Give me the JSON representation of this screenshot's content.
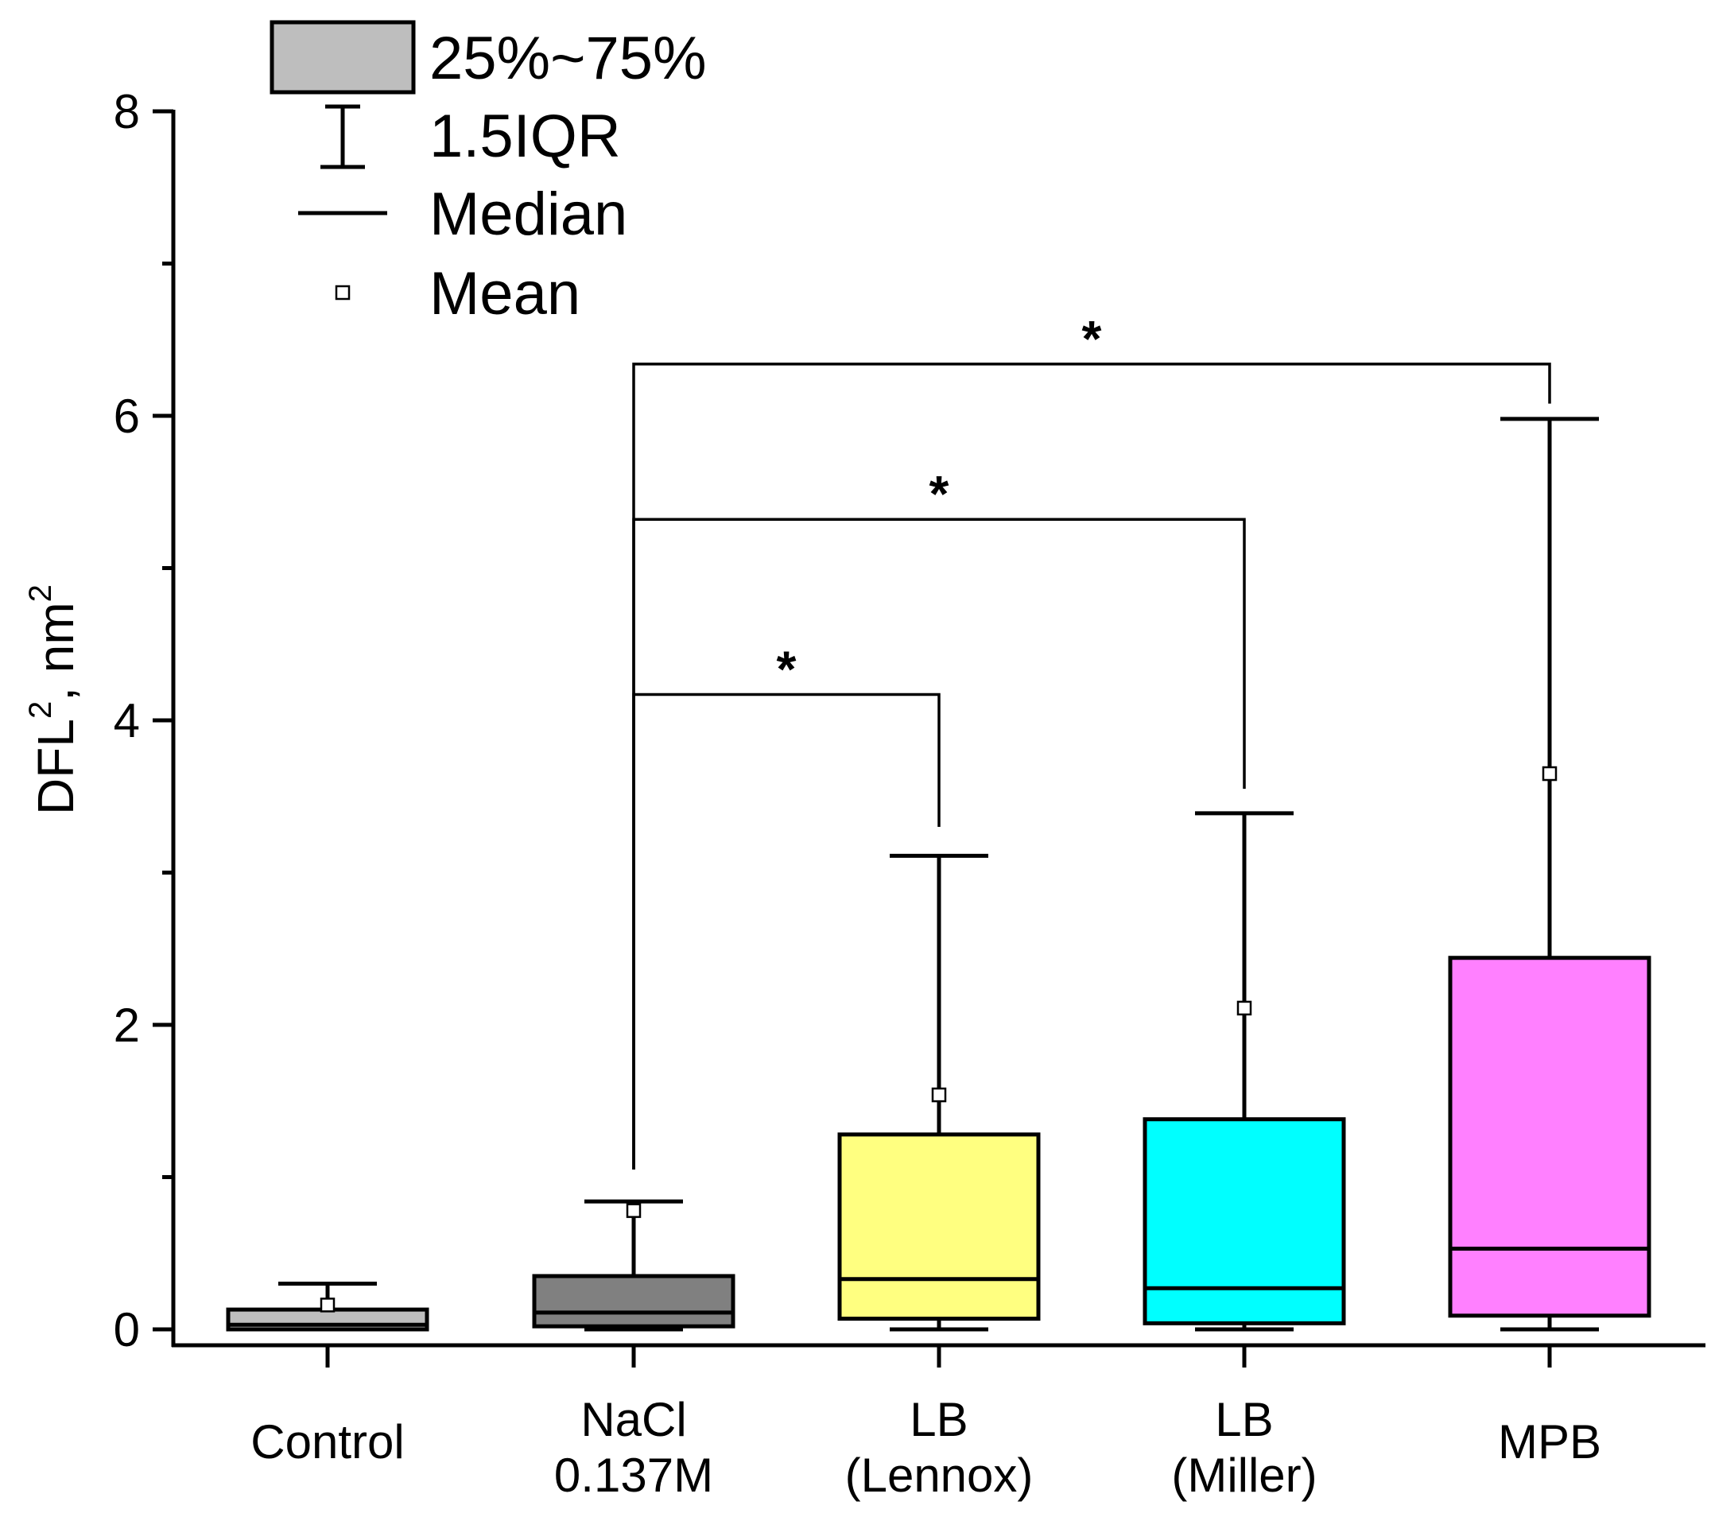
{
  "chart_data": {
    "type": "box",
    "ylabel": "DFL",
    "ylabel_sup": "2",
    "ylabel_unit": ", nm",
    "ylabel_unit_sup": "2",
    "ylim": [
      -0.2,
      8.2
    ],
    "yticks": [
      0,
      2,
      4,
      6,
      8
    ],
    "yticks_labels": [
      "0",
      "2",
      "4",
      "6",
      "8"
    ],
    "categories": [
      {
        "lines": [
          "Control"
        ]
      },
      {
        "lines": [
          "NaCl",
          "0.137M"
        ]
      },
      {
        "lines": [
          "LB",
          "(Lennox)"
        ]
      },
      {
        "lines": [
          "LB",
          "(Miller)"
        ]
      },
      {
        "lines": [
          "MPB"
        ]
      }
    ],
    "boxes": [
      {
        "name": "Control",
        "q1": 0.0,
        "median": 0.03,
        "q3": 0.13,
        "whisker_low": 0.0,
        "whisker_high": 0.3,
        "mean": 0.16,
        "color": "#bebebe"
      },
      {
        "name": "NaCl 0.137M",
        "q1": 0.02,
        "median": 0.11,
        "q3": 0.35,
        "whisker_low": 0.0,
        "whisker_high": 0.84,
        "mean": 0.78,
        "color": "#808080"
      },
      {
        "name": "LB (Lennox)",
        "q1": 0.07,
        "median": 0.33,
        "q3": 1.28,
        "whisker_low": 0.0,
        "whisker_high": 3.11,
        "mean": 1.54,
        "color": "#ffff80"
      },
      {
        "name": "LB (Miller)",
        "q1": 0.04,
        "median": 0.27,
        "q3": 1.38,
        "whisker_low": 0.0,
        "whisker_high": 3.39,
        "mean": 2.11,
        "color": "#00ffff"
      },
      {
        "name": "MPB",
        "q1": 0.09,
        "median": 0.53,
        "q3": 2.44,
        "whisker_low": 0.0,
        "whisker_high": 5.98,
        "mean": 3.65,
        "color": "#ff80ff"
      }
    ],
    "significance": [
      {
        "from": 1,
        "to": 2,
        "bar_y": 4.17,
        "from_end_y": 1.05,
        "to_end_y": 3.3,
        "label": "*"
      },
      {
        "from": 1,
        "to": 3,
        "bar_y": 5.32,
        "from_end_y": 1.05,
        "to_end_y": 3.55,
        "label": "*"
      },
      {
        "from": 1,
        "to": 4,
        "bar_y": 6.34,
        "from_end_y": 1.05,
        "to_end_y": 6.08,
        "label": "*"
      }
    ],
    "legend": {
      "position": "top-left",
      "items": [
        {
          "type": "box",
          "label": "25%~75%"
        },
        {
          "type": "whisker",
          "label": "1.5IQR"
        },
        {
          "type": "median",
          "label": "Median"
        },
        {
          "type": "mean",
          "label": "Mean"
        }
      ]
    }
  }
}
